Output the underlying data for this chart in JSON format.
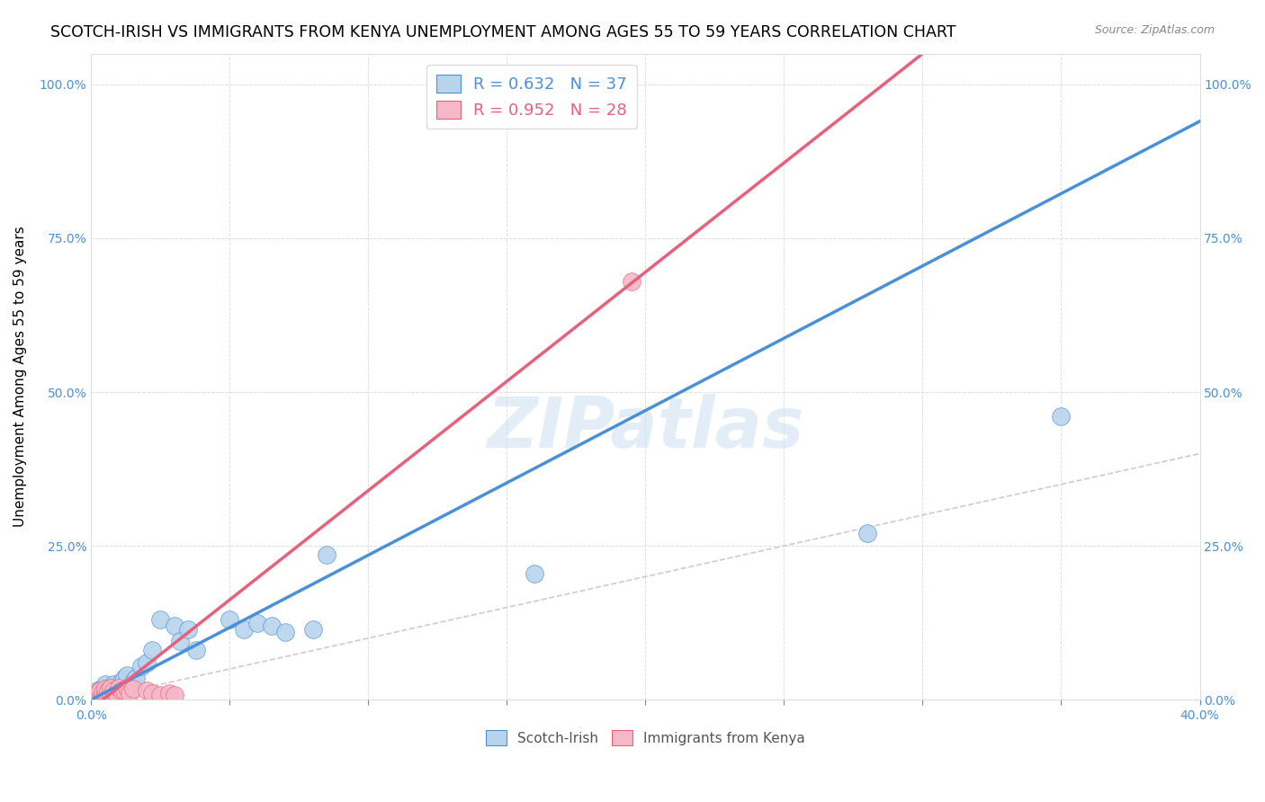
{
  "title": "SCOTCH-IRISH VS IMMIGRANTS FROM KENYA UNEMPLOYMENT AMONG AGES 55 TO 59 YEARS CORRELATION CHART",
  "source": "Source: ZipAtlas.com",
  "ylabel_label": "Unemployment Among Ages 55 to 59 years",
  "xlim": [
    0.0,
    0.4
  ],
  "ylim": [
    0.0,
    1.05
  ],
  "yticks": [
    0.0,
    0.25,
    0.5,
    0.75,
    1.0
  ],
  "ytick_labels": [
    "0.0%",
    "25.0%",
    "50.0%",
    "75.0%",
    "100.0%"
  ],
  "xtick_positions": [
    0.0,
    0.05,
    0.1,
    0.15,
    0.2,
    0.25,
    0.3,
    0.35,
    0.4
  ],
  "xtick_labels": [
    "0.0%",
    "",
    "",
    "",
    "",
    "",
    "",
    "",
    "40.0%"
  ],
  "blue_R": 0.632,
  "blue_N": 37,
  "pink_R": 0.952,
  "pink_N": 28,
  "blue_color": "#b8d4ec",
  "pink_color": "#f4b8c8",
  "blue_line_color": "#4a90d9",
  "pink_line_color": "#e8607a",
  "diagonal_color": "#cccccc",
  "watermark": "ZIPatlas",
  "blue_scatter_x": [
    0.001,
    0.002,
    0.002,
    0.003,
    0.003,
    0.004,
    0.004,
    0.005,
    0.005,
    0.006,
    0.007,
    0.008,
    0.009,
    0.01,
    0.011,
    0.012,
    0.013,
    0.015,
    0.016,
    0.018,
    0.02,
    0.022,
    0.025,
    0.03,
    0.032,
    0.035,
    0.038,
    0.05,
    0.055,
    0.06,
    0.065,
    0.07,
    0.08,
    0.085,
    0.16,
    0.28,
    0.35
  ],
  "blue_scatter_y": [
    0.005,
    0.01,
    0.015,
    0.005,
    0.015,
    0.01,
    0.02,
    0.01,
    0.025,
    0.015,
    0.02,
    0.025,
    0.015,
    0.02,
    0.03,
    0.035,
    0.04,
    0.03,
    0.035,
    0.055,
    0.06,
    0.08,
    0.13,
    0.12,
    0.095,
    0.115,
    0.08,
    0.13,
    0.115,
    0.125,
    0.12,
    0.11,
    0.115,
    0.235,
    0.205,
    0.27,
    0.46
  ],
  "pink_scatter_x": [
    0.001,
    0.001,
    0.002,
    0.002,
    0.003,
    0.003,
    0.004,
    0.004,
    0.005,
    0.005,
    0.006,
    0.006,
    0.007,
    0.007,
    0.008,
    0.009,
    0.01,
    0.011,
    0.012,
    0.013,
    0.014,
    0.015,
    0.02,
    0.022,
    0.025,
    0.028,
    0.03,
    0.195
  ],
  "pink_scatter_y": [
    0.003,
    0.008,
    0.005,
    0.01,
    0.008,
    0.015,
    0.005,
    0.012,
    0.01,
    0.018,
    0.008,
    0.015,
    0.01,
    0.02,
    0.015,
    0.01,
    0.02,
    0.015,
    0.015,
    0.02,
    0.01,
    0.018,
    0.015,
    0.01,
    0.008,
    0.01,
    0.008,
    0.68
  ],
  "blue_line_intercept": 0.0,
  "blue_line_slope": 2.35,
  "pink_line_intercept": -0.015,
  "pink_line_slope": 3.55,
  "title_fontsize": 12.5,
  "axis_label_fontsize": 11,
  "tick_fontsize": 10,
  "legend_fontsize": 13
}
